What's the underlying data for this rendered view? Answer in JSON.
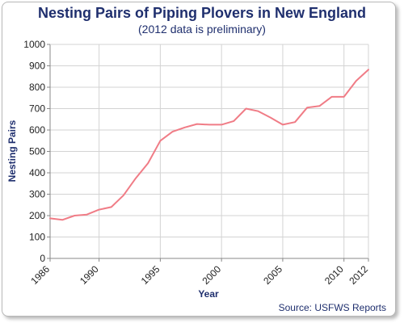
{
  "title": "Nesting Pairs of Piping Plovers in New England",
  "subtitle": "(2012 data is preliminary)",
  "source": "Source: USFWS Reports",
  "colors": {
    "line": "#f07c86",
    "text": "#1f2f6e",
    "grid": "#d3d3d3",
    "axis": "#888888"
  },
  "chart_data": {
    "type": "line",
    "title": "Nesting Pairs of Piping Plovers in New England",
    "subtitle": "(2012 data is preliminary)",
    "xlabel": "Year",
    "ylabel": "Nesting Pairs",
    "xlim": [
      1986,
      2012
    ],
    "ylim": [
      0,
      1000
    ],
    "x_ticks": [
      "1986",
      "1990",
      "1995",
      "2000",
      "2005",
      "2010",
      "2012"
    ],
    "y_ticks": [
      "0",
      "100",
      "200",
      "300",
      "400",
      "500",
      "600",
      "700",
      "800",
      "900",
      "1000"
    ],
    "grid": true,
    "series": [
      {
        "x": [
          1986,
          1987,
          1988,
          1989,
          1990,
          1991,
          1992,
          1993,
          1994,
          1995,
          1996,
          1997,
          1998,
          1999,
          2000,
          2001,
          2002,
          2003,
          2004,
          2005,
          2006,
          2007,
          2008,
          2009,
          2010,
          2011,
          2012
        ],
        "values": [
          187,
          180,
          200,
          205,
          228,
          240,
          295,
          375,
          445,
          550,
          592,
          612,
          628,
          625,
          625,
          642,
          700,
          688,
          658,
          625,
          637,
          705,
          712,
          755,
          755,
          830,
          882
        ]
      }
    ]
  }
}
